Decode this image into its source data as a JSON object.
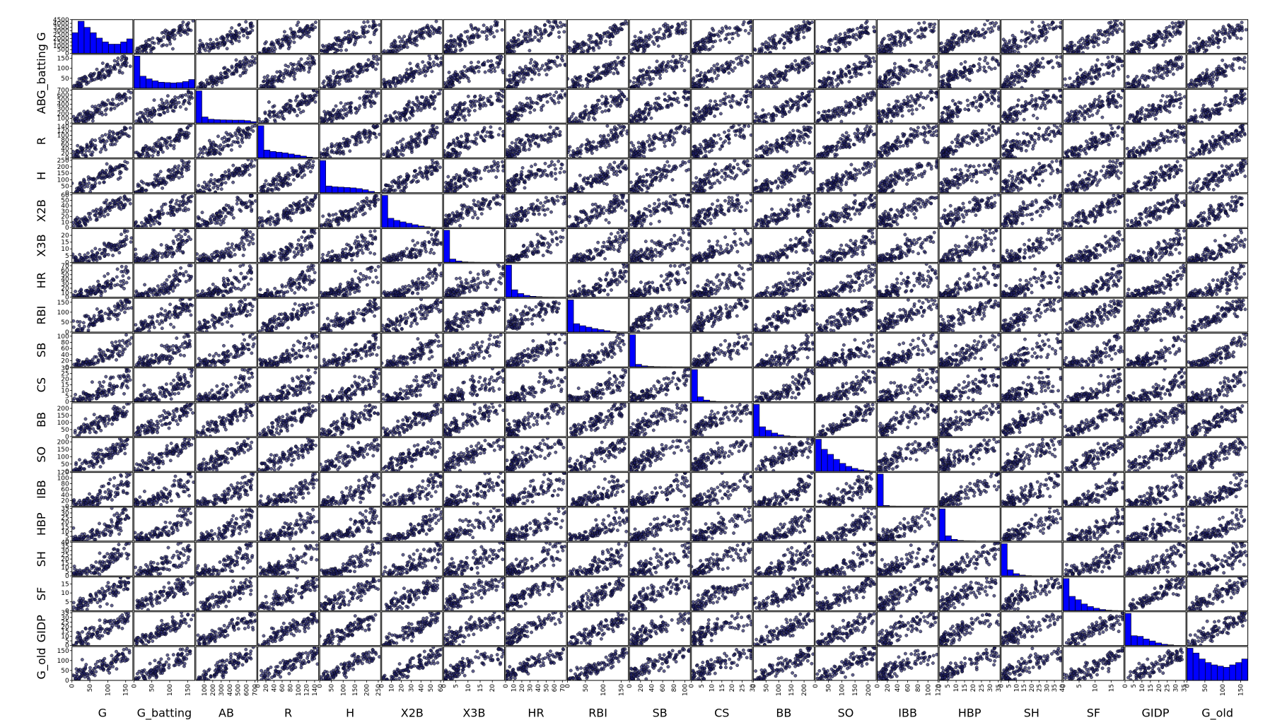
{
  "chart_data": {
    "type": "scatter-matrix",
    "title": "",
    "variables": [
      "G",
      "G_batting",
      "AB",
      "R",
      "H",
      "X2B",
      "X3B",
      "HR",
      "RBI",
      "SB",
      "CS",
      "BB",
      "SO",
      "IBB",
      "HBP",
      "SH",
      "SF",
      "GIDP",
      "G_old"
    ],
    "ranges": {
      "G": [
        0,
        170
      ],
      "G_batting": [
        0,
        170
      ],
      "AB": [
        0,
        720
      ],
      "R": [
        0,
        150
      ],
      "H": [
        0,
        260
      ],
      "X2B": [
        0,
        62
      ],
      "X3B": [
        0,
        25
      ],
      "HR": [
        0,
        75
      ],
      "RBI": [
        0,
        170
      ],
      "SB": [
        0,
        110
      ],
      "CS": [
        0,
        30
      ],
      "BB": [
        0,
        240
      ],
      "SO": [
        0,
        230
      ],
      "IBB": [
        0,
        120
      ],
      "HBP": [
        0,
        36
      ],
      "SH": [
        0,
        40
      ],
      "SF": [
        0,
        19
      ],
      "GIDP": [
        0,
        36
      ],
      "G_old": [
        0,
        170
      ]
    },
    "diag_ticks": {
      "G": [
        0,
        500,
        1000,
        1500,
        2000,
        2500,
        3000,
        3500,
        4000,
        4500
      ],
      "G_batting": [
        50,
        100,
        150
      ],
      "AB": [
        0,
        100,
        200,
        300,
        400,
        500,
        600,
        700
      ],
      "R": [
        0,
        20,
        40,
        60,
        80,
        100,
        120,
        140
      ],
      "H": [
        0,
        50,
        100,
        150,
        200,
        250
      ],
      "X2B": [
        0,
        10,
        20,
        30,
        40,
        50,
        60
      ],
      "X3B": [
        0,
        5,
        10,
        15,
        20
      ],
      "HR": [
        0,
        10,
        20,
        30,
        40,
        50,
        60,
        70
      ],
      "RBI": [
        0,
        50,
        100,
        150
      ],
      "SB": [
        0,
        20,
        40,
        60,
        80,
        100
      ],
      "CS": [
        0,
        5,
        10,
        15,
        20,
        25,
        30
      ],
      "BB": [
        0,
        50,
        100,
        150,
        200
      ],
      "SO": [
        0,
        50,
        100,
        150,
        200
      ],
      "IBB": [
        0,
        20,
        40,
        60,
        80,
        100,
        120
      ],
      "HBP": [
        0,
        5,
        10,
        15,
        20,
        25,
        30,
        35
      ],
      "SH": [
        0,
        5,
        10,
        15,
        20,
        25,
        30,
        35,
        40
      ],
      "SF": [
        0,
        5,
        10,
        15
      ],
      "GIDP": [
        0,
        5,
        10,
        15,
        20,
        25,
        30,
        35
      ],
      "G_old": [
        0,
        50,
        100,
        150
      ]
    },
    "bottom_ticks": {
      "G": [
        0,
        50,
        100,
        150
      ],
      "G_batting": [
        0,
        50,
        100,
        150
      ],
      "AB": [
        100,
        200,
        300,
        400,
        500,
        600,
        700
      ],
      "R": [
        0,
        20,
        40,
        60,
        80,
        100,
        120,
        140
      ],
      "H": [
        0,
        50,
        100,
        150,
        200,
        250
      ],
      "X2B": [
        0,
        10,
        20,
        30,
        40,
        50,
        60
      ],
      "X3B": [
        0,
        5,
        10,
        15,
        20
      ],
      "HR": [
        0,
        10,
        20,
        30,
        40,
        50,
        60,
        70
      ],
      "RBI": [
        0,
        50,
        100,
        150
      ],
      "SB": [
        0,
        20,
        40,
        60,
        80,
        100
      ],
      "CS": [
        0,
        5,
        10,
        15,
        20,
        25,
        30
      ],
      "BB": [
        0,
        50,
        100,
        150,
        200
      ],
      "SO": [
        0,
        50,
        100,
        150,
        200
      ],
      "IBB": [
        0,
        20,
        40,
        60,
        80,
        100,
        120
      ],
      "HBP": [
        0,
        5,
        10,
        15,
        20,
        25,
        30,
        35
      ],
      "SH": [
        0,
        5,
        10,
        15,
        20,
        25,
        30,
        35,
        40
      ],
      "SF": [
        0,
        5,
        10,
        15
      ],
      "GIDP": [
        0,
        5,
        10,
        15,
        20,
        25,
        30,
        35
      ],
      "G_old": [
        0,
        50,
        100,
        150
      ]
    },
    "histograms": {
      "G": [
        2700,
        4200,
        3400,
        2700,
        2000,
        1500,
        1200,
        1200,
        1500,
        1900
      ],
      "G_batting": [
        4800,
        1800,
        1400,
        1100,
        900,
        850,
        800,
        850,
        1000,
        1300
      ],
      "AB": [
        4200,
        800,
        500,
        450,
        420,
        400,
        380,
        380,
        320,
        180
      ],
      "R": [
        4500,
        1100,
        900,
        800,
        700,
        550,
        400,
        250,
        100,
        30
      ],
      "H": [
        4300,
        900,
        800,
        750,
        700,
        650,
        550,
        400,
        180,
        40
      ],
      "X2B": [
        4500,
        1300,
        1000,
        800,
        600,
        400,
        220,
        100,
        30,
        8
      ],
      "X3B": [
        5800,
        600,
        250,
        100,
        40,
        15,
        5,
        2,
        1,
        0
      ],
      "HR": [
        5200,
        1200,
        600,
        300,
        150,
        80,
        30,
        10,
        3,
        1
      ],
      "RBI": [
        4600,
        1200,
        900,
        700,
        500,
        350,
        200,
        80,
        20,
        5
      ],
      "SB": [
        6200,
        500,
        200,
        100,
        50,
        25,
        10,
        5,
        2,
        1
      ],
      "CS": [
        5800,
        900,
        300,
        100,
        40,
        15,
        5,
        2,
        1,
        0
      ],
      "BB": [
        4600,
        1400,
        900,
        500,
        250,
        100,
        40,
        10,
        3,
        1
      ],
      "SO": [
        3200,
        2200,
        1700,
        1200,
        800,
        500,
        300,
        150,
        60,
        15
      ],
      "IBB": [
        6800,
        150,
        40,
        15,
        5,
        2,
        1,
        1,
        0,
        0
      ],
      "HBP": [
        5500,
        900,
        300,
        100,
        40,
        15,
        5,
        2,
        1,
        0
      ],
      "SH": [
        5800,
        1100,
        400,
        150,
        60,
        25,
        10,
        5,
        2,
        1
      ],
      "SF": [
        3800,
        1700,
        1300,
        800,
        500,
        300,
        150,
        60,
        20,
        5
      ],
      "GIDP": [
        4900,
        1500,
        1400,
        1000,
        700,
        400,
        200,
        100,
        30,
        10
      ],
      "G_old": [
        2700,
        2300,
        1800,
        1500,
        1300,
        1200,
        1100,
        1300,
        1500,
        1800
      ]
    },
    "point_color": "#1c1c60",
    "point_stroke": "#000000",
    "bar_color": "#0000ff",
    "grid": false,
    "legend": "none"
  }
}
